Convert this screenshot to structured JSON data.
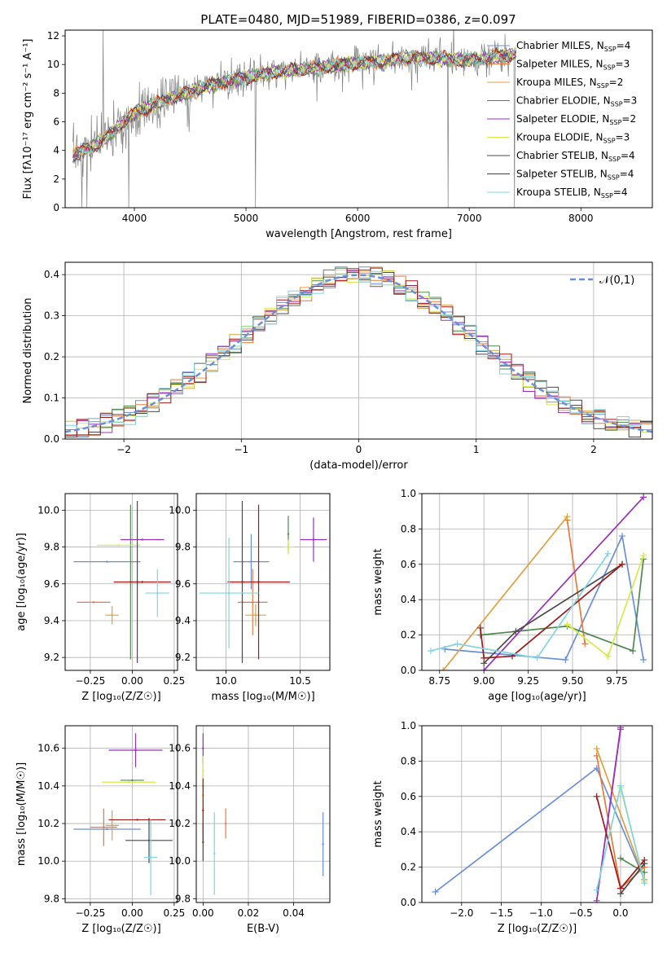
{
  "figure": {
    "title": "PLATE=0480, MJD=51989, FIBERID=0386, z=0.097"
  },
  "colors": {
    "data_gray": "#808080",
    "gauss_dash": "#6a8fd8",
    "grid": "#b0b0b0"
  },
  "models": [
    {
      "name": "Chabrier MILES",
      "nssp": "4",
      "color": "#6a8fd8"
    },
    {
      "name": "Salpeter MILES",
      "nssp": "3",
      "color": "#e8793a"
    },
    {
      "name": "Kroupa MILES",
      "nssp": "2",
      "color": "#e0a040"
    },
    {
      "name": "Chabrier ELODIE",
      "nssp": "3",
      "color": "#4e8a4e"
    },
    {
      "name": "Salpeter ELODIE",
      "nssp": "2",
      "color": "#9b30b8"
    },
    {
      "name": "Kroupa ELODIE",
      "nssp": "3",
      "color": "#d6ea4a"
    },
    {
      "name": "Chabrier STELIB",
      "nssp": "4",
      "color": "#4a4a4a"
    },
    {
      "name": "Salpeter STELIB",
      "nssp": "4",
      "color": "#a01818"
    },
    {
      "name": "Kroupa STELIB",
      "nssp": "4",
      "color": "#7fd6e0"
    }
  ],
  "chart_data": [
    {
      "id": "spectrum",
      "type": "line",
      "title": "PLATE=0480, MJD=51989, FIBERID=0386, z=0.097",
      "xlabel": "wavelength [Angstrom, rest frame]",
      "ylabel": "Flux [fλ10⁻¹⁷ erg cm⁻² s⁻¹ A⁻¹]",
      "xlim": [
        3380,
        8640
      ],
      "ylim": [
        0,
        12.4
      ],
      "xticks": [
        4000,
        5000,
        6000,
        7000,
        8000
      ],
      "yticks": [
        0,
        2,
        4,
        6,
        8,
        10,
        12
      ],
      "legend": "top-right",
      "continuum": {
        "x": [
          3450,
          3700,
          4000,
          4300,
          4700,
          5200,
          5800,
          6500,
          7000,
          7500,
          8000,
          8600
        ],
        "y": [
          3.6,
          4.6,
          6.6,
          7.6,
          8.6,
          9.4,
          9.9,
          10.5,
          10.3,
          10.8,
          11.2,
          11.4
        ]
      }
    },
    {
      "id": "residuals",
      "type": "line",
      "xlabel": "(data-model)/error",
      "ylabel": "Normed distribution",
      "xlim": [
        -2.5,
        2.5
      ],
      "ylim": [
        0,
        0.43
      ],
      "xticks": [
        -2,
        -1,
        0,
        1,
        2
      ],
      "yticks": [
        0.0,
        0.1,
        0.2,
        0.3,
        0.4
      ],
      "legend": "top-right",
      "gaussian_label": "𝒩(0,1)",
      "bin_width": 0.1
    },
    {
      "id": "age-vs-Z",
      "type": "scatter",
      "xlabel": "Z [log₁₀(Z/Z☉)]",
      "ylabel": "age  [log₁₀(age/yr)]",
      "xlim": [
        -0.4,
        0.27
      ],
      "ylim": [
        9.13,
        10.09
      ],
      "xticks": [
        -0.25,
        0.0,
        0.25
      ],
      "yticks": [
        9.2,
        9.4,
        9.6,
        9.8,
        10.0
      ],
      "points": [
        {
          "x": -0.15,
          "xerr": 0.2,
          "y": 9.72,
          "yerr": 0.0
        },
        {
          "x": -0.23,
          "xerr": 0.1,
          "y": 9.5,
          "yerr": 0.0
        },
        {
          "x": -0.12,
          "xerr": 0.04,
          "y": 9.43,
          "yerr": 0.05
        },
        {
          "x": -0.01,
          "xerr": 0.01,
          "y": 9.61,
          "yerr": 0.42
        },
        {
          "x": 0.06,
          "xerr": 0.13,
          "y": 9.84,
          "yerr": 0.0
        },
        {
          "x": -0.08,
          "xerr": 0.13,
          "y": 9.81,
          "yerr": 0.0
        },
        {
          "x": 0.03,
          "xerr": 0.0,
          "y": 9.61,
          "yerr": 0.44
        },
        {
          "x": 0.06,
          "xerr": 0.17,
          "y": 9.61,
          "yerr": 0.0
        },
        {
          "x": 0.15,
          "xerr": 0.07,
          "y": 9.55,
          "yerr": 0.13
        }
      ]
    },
    {
      "id": "age-vs-mass",
      "type": "scatter",
      "xlabel": "mass [log₁₀(M/M☉)]",
      "ylabel": "",
      "xlim": [
        9.8,
        10.7
      ],
      "ylim": [
        9.13,
        10.09
      ],
      "xticks": [
        10.0,
        10.5
      ],
      "yticks": [
        9.2,
        9.4,
        9.6,
        9.8,
        10.0
      ],
      "points": [
        {
          "x": 10.17,
          "xerr": 0.12,
          "y": 9.72,
          "yerr": 0.15
        },
        {
          "x": 10.18,
          "xerr": 0.1,
          "y": 9.5,
          "yerr": 0.18
        },
        {
          "x": 10.2,
          "xerr": 0.07,
          "y": 9.43,
          "yerr": 0.06
        },
        {
          "x": 10.42,
          "xerr": 0.0,
          "y": 9.87,
          "yerr": 0.1
        },
        {
          "x": 10.59,
          "xerr": 0.09,
          "y": 9.84,
          "yerr": 0.12
        },
        {
          "x": 10.42,
          "xerr": 0.04,
          "y": 9.8,
          "yerr": 0.04
        },
        {
          "x": 10.11,
          "xerr": 0.01,
          "y": 9.61,
          "yerr": 0.44
        },
        {
          "x": 10.22,
          "xerr": 0.21,
          "y": 9.61,
          "yerr": 0.42
        },
        {
          "x": 10.02,
          "xerr": 0.2,
          "y": 9.55,
          "yerr": 0.3
        }
      ]
    },
    {
      "id": "weight-vs-age",
      "type": "line",
      "xlabel": "age  [log₁₀(age/yr)]",
      "ylabel": "mass weight",
      "xlim": [
        8.65,
        9.95
      ],
      "ylim": [
        0,
        1
      ],
      "xticks": [
        8.75,
        9.0,
        9.25,
        9.5,
        9.75
      ],
      "yticks": [
        0.0,
        0.2,
        0.4,
        0.6,
        0.8,
        1.0
      ],
      "series": [
        {
          "x": [
            8.78,
            9.46,
            9.78,
            9.9
          ],
          "y": [
            0.12,
            0.06,
            0.76,
            0.06
          ]
        },
        {
          "x": [
            9.47,
            9.57
          ],
          "y": [
            0.85,
            0.15
          ]
        },
        {
          "x": [
            8.77,
            9.47
          ],
          "y": [
            0.0,
            0.87
          ]
        },
        {
          "x": [
            8.98,
            9.47,
            9.84,
            9.9
          ],
          "y": [
            0.2,
            0.25,
            0.11,
            0.63
          ]
        },
        {
          "x": [
            9.0,
            9.9
          ],
          "y": [
            0.0,
            0.98
          ]
        },
        {
          "x": [
            9.47,
            9.7,
            9.9
          ],
          "y": [
            0.26,
            0.08,
            0.65
          ]
        },
        {
          "x": [
            9.0,
            9.18,
            9.78
          ],
          "y": [
            0.04,
            0.22,
            0.6
          ]
        },
        {
          "x": [
            8.98,
            9.0,
            9.16,
            9.78
          ],
          "y": [
            0.24,
            0.07,
            0.08,
            0.6
          ]
        },
        {
          "x": [
            8.7,
            8.85,
            9.3,
            9.7
          ],
          "y": [
            0.11,
            0.15,
            0.07,
            0.66
          ]
        }
      ]
    },
    {
      "id": "mass-vs-Z",
      "type": "scatter",
      "xlabel": "Z [log₁₀(Z/Z☉)]",
      "ylabel": "mass [log₁₀(M/M☉)]",
      "xlim": [
        -0.4,
        0.27
      ],
      "ylim": [
        9.78,
        10.72
      ],
      "xticks": [
        -0.25,
        0.0,
        0.25
      ],
      "yticks": [
        9.8,
        10.0,
        10.2,
        10.4,
        10.6
      ],
      "points": [
        {
          "x": -0.15,
          "xerr": 0.2,
          "y": 10.17,
          "yerr": 0.0
        },
        {
          "x": -0.17,
          "xerr": 0.08,
          "y": 10.18,
          "yerr": 0.1
        },
        {
          "x": -0.12,
          "xerr": 0.04,
          "y": 10.19,
          "yerr": 0.08
        },
        {
          "x": 0.0,
          "xerr": 0.07,
          "y": 10.43,
          "yerr": 0.0
        },
        {
          "x": 0.02,
          "xerr": 0.16,
          "y": 10.59,
          "yerr": 0.09
        },
        {
          "x": -0.02,
          "xerr": 0.16,
          "y": 10.42,
          "yerr": 0.0
        },
        {
          "x": 0.1,
          "xerr": 0.14,
          "y": 10.11,
          "yerr": 0.12
        },
        {
          "x": 0.03,
          "xerr": 0.17,
          "y": 10.22,
          "yerr": 0.0
        },
        {
          "x": 0.11,
          "xerr": 0.04,
          "y": 10.02,
          "yerr": 0.2
        }
      ]
    },
    {
      "id": "mass-vs-EBV",
      "type": "scatter",
      "xlabel": "E(B-V)",
      "ylabel": "",
      "xlim": [
        -0.003,
        0.056
      ],
      "ylim": [
        9.78,
        10.72
      ],
      "xticks": [
        0.0,
        0.02,
        0.04
      ],
      "yticks": [
        9.8,
        10.0,
        10.2,
        10.4,
        10.6
      ],
      "points": [
        {
          "x": 0.053,
          "xerr": 0.0,
          "y": 10.09,
          "yerr": 0.17
        },
        {
          "x": 0.01,
          "xerr": 0.0,
          "y": 10.2,
          "yerr": 0.08
        },
        {
          "x": 0.0,
          "xerr": 0.0,
          "y": 10.35,
          "yerr": 0.2
        },
        {
          "x": 0.0,
          "xerr": 0.0,
          "y": 10.4,
          "yerr": 0.0
        },
        {
          "x": 0.0,
          "xerr": 0.0,
          "y": 10.6,
          "yerr": 0.08
        },
        {
          "x": 0.0,
          "xerr": 0.0,
          "y": 10.48,
          "yerr": 0.08
        },
        {
          "x": 0.0,
          "xerr": 0.0,
          "y": 10.1,
          "yerr": 0.1
        },
        {
          "x": 0.0,
          "xerr": 0.0,
          "y": 10.27,
          "yerr": 0.17
        },
        {
          "x": 0.005,
          "xerr": 0.0,
          "y": 10.04,
          "yerr": 0.22
        }
      ]
    },
    {
      "id": "weight-vs-Z",
      "type": "line",
      "xlabel": "Z [log₁₀(Z/Z☉)]",
      "ylabel": "mass weight",
      "xlim": [
        -2.5,
        0.4
      ],
      "ylim": [
        0,
        1
      ],
      "xticks": [
        -2.0,
        -1.5,
        -1.0,
        -0.5,
        0.0
      ],
      "yticks": [
        0.0,
        0.2,
        0.4,
        0.6,
        0.8,
        1.0
      ],
      "series": [
        {
          "x": [
            -2.33,
            -0.3,
            0.3
          ],
          "y": [
            0.06,
            0.76,
            0.13
          ]
        },
        {
          "x": [
            -0.3,
            0.0,
            0.3
          ],
          "y": [
            0.83,
            0.08,
            0.2
          ]
        },
        {
          "x": [
            -0.3,
            0.3
          ],
          "y": [
            0.87,
            0.13
          ]
        },
        {
          "x": [
            0.0,
            0.3
          ],
          "y": [
            0.25,
            0.17
          ]
        },
        {
          "x": [
            0.0,
            -0.3,
            0.0
          ],
          "y": [
            0.98,
            0.01,
            0.99
          ]
        },
        {
          "x": [
            0.0,
            0.3
          ],
          "y": [
            0.65,
            0.12
          ]
        },
        {
          "x": [
            0.0,
            0.3
          ],
          "y": [
            0.05,
            0.22
          ]
        },
        {
          "x": [
            -0.3,
            0.0,
            0.3
          ],
          "y": [
            0.6,
            0.08,
            0.24
          ]
        },
        {
          "x": [
            -0.3,
            0.0,
            0.3
          ],
          "y": [
            0.07,
            0.66,
            0.11
          ]
        }
      ]
    }
  ]
}
